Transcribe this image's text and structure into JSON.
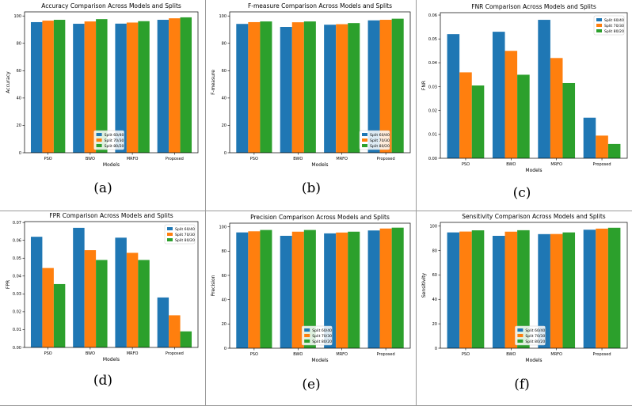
{
  "chart_data": [
    {
      "type": "bar",
      "letter": "(a)",
      "title": "Accuracy Comparison Across Models and Splits",
      "xlabel": "Models",
      "ylabel": "Accuracy",
      "categories": [
        "PSO",
        "BWO",
        "MRFO",
        "Proposed"
      ],
      "series": [
        {
          "name": "Split 60/40",
          "values": [
            95.5,
            94.3,
            94.4,
            97.2
          ]
        },
        {
          "name": "Split 70/30",
          "values": [
            96.6,
            96.0,
            95.2,
            98.3
          ]
        },
        {
          "name": "Split 80/20",
          "values": [
            97.2,
            97.7,
            96.2,
            99.0
          ]
        }
      ],
      "ylim": [
        0,
        103
      ],
      "yticks": [
        0,
        20,
        40,
        60,
        80,
        100
      ],
      "ytick_labels": [
        "0",
        "20",
        "40",
        "60",
        "80",
        "100"
      ],
      "legend": "lower-center"
    },
    {
      "type": "bar",
      "letter": "(b)",
      "title": "F-measure Comparison Across Models and Splits",
      "xlabel": "Models",
      "ylabel": "F-measure",
      "categories": [
        "PSO",
        "BWO",
        "MRFO",
        "Proposed"
      ],
      "series": [
        {
          "name": "Split 60/40",
          "values": [
            94.2,
            92.0,
            93.6,
            96.8
          ]
        },
        {
          "name": "Split 70/30",
          "values": [
            95.5,
            95.4,
            94.0,
            97.2
          ]
        },
        {
          "name": "Split 80/20",
          "values": [
            96.0,
            96.0,
            94.8,
            98.0
          ]
        }
      ],
      "ylim": [
        0,
        103
      ],
      "yticks": [
        0,
        20,
        40,
        60,
        80,
        100
      ],
      "ytick_labels": [
        "0",
        "20",
        "40",
        "60",
        "80",
        "100"
      ],
      "legend": "lower-right"
    },
    {
      "type": "bar",
      "letter": "(c)",
      "title": "FNR Comparison Across Models and Splits",
      "xlabel": "Models",
      "ylabel": "FNR",
      "categories": [
        "PSO",
        "BWO",
        "MRFO",
        "Proposed"
      ],
      "series": [
        {
          "name": "Split 60/40",
          "values": [
            0.052,
            0.053,
            0.058,
            0.017
          ]
        },
        {
          "name": "Split 70/30",
          "values": [
            0.036,
            0.045,
            0.042,
            0.0095
          ]
        },
        {
          "name": "Split 80/20",
          "values": [
            0.0305,
            0.035,
            0.0315,
            0.006
          ]
        }
      ],
      "ylim": [
        0,
        0.061
      ],
      "yticks": [
        0,
        0.01,
        0.02,
        0.03,
        0.04,
        0.05,
        0.06
      ],
      "ytick_labels": [
        "0.00",
        "0.01",
        "0.02",
        "0.03",
        "0.04",
        "0.05",
        "0.06"
      ],
      "legend": "upper-right"
    },
    {
      "type": "bar",
      "letter": "(d)",
      "title": "FPR Comparison Across Models and Splits",
      "xlabel": "Models",
      "ylabel": "FPR",
      "categories": [
        "PSO",
        "BWO",
        "MRFO",
        "Proposed"
      ],
      "series": [
        {
          "name": "Split 60/40",
          "values": [
            0.062,
            0.067,
            0.0615,
            0.028
          ]
        },
        {
          "name": "Split 70/30",
          "values": [
            0.0445,
            0.0545,
            0.053,
            0.018
          ]
        },
        {
          "name": "Split 80/20",
          "values": [
            0.0355,
            0.049,
            0.049,
            0.009
          ]
        }
      ],
      "ylim": [
        0,
        0.0705
      ],
      "yticks": [
        0,
        0.01,
        0.02,
        0.03,
        0.04,
        0.05,
        0.06,
        0.07
      ],
      "ytick_labels": [
        "0.00",
        "0.01",
        "0.02",
        "0.03",
        "0.04",
        "0.05",
        "0.06",
        "0.07"
      ],
      "legend": "upper-right"
    },
    {
      "type": "bar",
      "letter": "(e)",
      "title": "Precision Comparison Across Models and Splits",
      "xlabel": "Models",
      "ylabel": "Precision",
      "categories": [
        "PSO",
        "BWO",
        "MRFO",
        "Proposed"
      ],
      "series": [
        {
          "name": "Split 60/40",
          "values": [
            95.4,
            92.6,
            94.6,
            97.0
          ]
        },
        {
          "name": "Split 70/30",
          "values": [
            96.3,
            96.0,
            95.3,
            98.6
          ]
        },
        {
          "name": "Split 80/20",
          "values": [
            97.4,
            97.4,
            96.0,
            99.3
          ]
        }
      ],
      "ylim": [
        0,
        103
      ],
      "yticks": [
        0,
        20,
        40,
        60,
        80,
        100
      ],
      "ytick_labels": [
        "0",
        "20",
        "40",
        "60",
        "80",
        "100"
      ],
      "legend": "lower-center"
    },
    {
      "type": "bar",
      "letter": "(f)",
      "title": "Sensitivity Comparison Across Models and Splits",
      "xlabel": "Models",
      "ylabel": "Sensitivity",
      "categories": [
        "PSO",
        "BWO",
        "MRFO",
        "Proposed"
      ],
      "series": [
        {
          "name": "Split 60/40",
          "values": [
            94.8,
            92.0,
            93.4,
            97.0
          ]
        },
        {
          "name": "Split 70/30",
          "values": [
            95.5,
            95.4,
            93.5,
            97.9
          ]
        },
        {
          "name": "Split 80/20",
          "values": [
            96.5,
            96.6,
            94.8,
            98.6
          ]
        }
      ],
      "ylim": [
        0,
        103
      ],
      "yticks": [
        0,
        20,
        40,
        60,
        80,
        100
      ],
      "ytick_labels": [
        "0",
        "20",
        "40",
        "60",
        "80",
        "100"
      ],
      "legend": "lower-center"
    }
  ],
  "colors": {
    "series": [
      "#1f77b4",
      "#ff7f0e",
      "#2ca02c"
    ],
    "divider": "#9a9a9a",
    "axis": "#000000"
  }
}
